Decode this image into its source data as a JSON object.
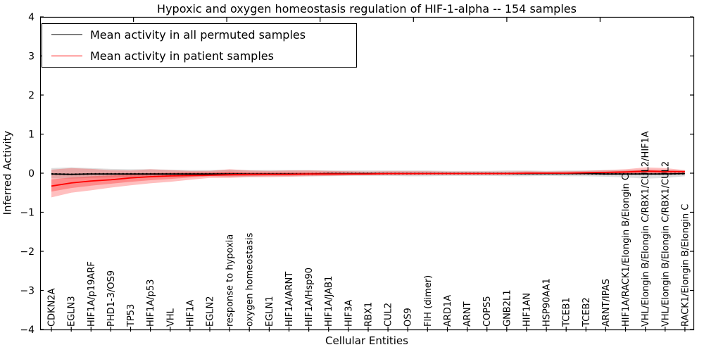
{
  "title": "Hypoxic and oxygen homeostasis regulation of HIF-1-alpha -- 154 samples",
  "colors": {
    "permuted_line": "#000000",
    "patient_line": "#ff0000",
    "permuted_band": "#000000",
    "patient_band": "#ff0000",
    "axis": "#000000",
    "background": "#ffffff"
  },
  "chart_data": {
    "type": "line",
    "title": "Hypoxic and oxygen homeostasis regulation of HIF-1-alpha -- 154 samples",
    "xlabel": "Cellular Entities",
    "ylabel": "Inferred Activity",
    "ylim": [
      -4,
      4
    ],
    "yticks": [
      -4,
      -3,
      -2,
      -1,
      0,
      1,
      2,
      3,
      4
    ],
    "grid": false,
    "legend_position": "upper left",
    "categories": [
      "CDKN2A",
      "EGLN3",
      "HIF1A/p19ARF",
      "PHD1-3/OS9",
      "TP53",
      "HIF1A/p53",
      "VHL",
      "HIF1A",
      "EGLN2",
      "response to hypoxia",
      "oxygen homeostasis",
      "EGLN1",
      "HIF1A/ARNT",
      "HIF1A/Hsp90",
      "HIF1A/JAB1",
      "HIF3A",
      "RBX1",
      "CUL2",
      "OS9",
      "FIH (dimer)",
      "ARD1A",
      "ARNT",
      "COPS5",
      "GNB2L1",
      "HIF1AN",
      "HSP90AA1",
      "TCEB1",
      "TCEB2",
      "ARNT/IPAS",
      "HIF1A/RACK1/Elongin B/Elongin C",
      "VHL/Elongin B/Elongin C/RBX1/CUL2/HIF1A",
      "VHL/Elongin B/Elongin C/RBX1/CUL2",
      "RACK1/Elongin B/Elongin C"
    ],
    "series": [
      {
        "name": "Mean activity in all permuted samples",
        "color": "#000000",
        "values": [
          -0.02,
          -0.03,
          -0.02,
          -0.02,
          -0.02,
          -0.02,
          -0.02,
          -0.02,
          -0.02,
          -0.02,
          -0.02,
          -0.02,
          -0.02,
          -0.02,
          -0.01,
          -0.01,
          -0.01,
          -0.01,
          -0.01,
          -0.01,
          -0.01,
          -0.01,
          -0.01,
          -0.01,
          -0.01,
          -0.01,
          -0.01,
          -0.01,
          -0.02,
          -0.02,
          -0.02,
          -0.02,
          -0.01
        ]
      },
      {
        "name": "Mean activity in patient samples",
        "color": "#ff0000",
        "values": [
          -0.33,
          -0.25,
          -0.2,
          -0.17,
          -0.12,
          -0.09,
          -0.07,
          -0.06,
          -0.05,
          -0.04,
          -0.03,
          -0.03,
          -0.03,
          -0.02,
          -0.02,
          -0.02,
          -0.02,
          -0.01,
          -0.01,
          -0.01,
          -0.01,
          -0.01,
          -0.01,
          -0.01,
          0,
          0,
          0,
          0.01,
          0.02,
          0.03,
          0.05,
          0.04,
          0.04
        ]
      }
    ],
    "bands": [
      {
        "name": "permuted-samples-band",
        "color": "#000000",
        "opacity": 0.13,
        "lower": [
          -0.13,
          -0.14,
          -0.12,
          -0.11,
          -0.1,
          -0.1,
          -0.1,
          -0.09,
          -0.08,
          -0.09,
          -0.09,
          -0.08,
          -0.08,
          -0.08,
          -0.08,
          -0.07,
          -0.07,
          -0.07,
          -0.08,
          -0.08,
          -0.07,
          -0.07,
          -0.07,
          -0.08,
          -0.08,
          -0.07,
          -0.08,
          -0.08,
          -0.09,
          -0.11,
          -0.14,
          -0.12,
          -0.08
        ],
        "upper": [
          0.13,
          0.15,
          0.13,
          0.11,
          0.1,
          0.1,
          0.09,
          0.08,
          0.08,
          0.09,
          0.08,
          0.08,
          0.08,
          0.08,
          0.07,
          0.07,
          0.07,
          0.07,
          0.07,
          0.07,
          0.06,
          0.06,
          0.06,
          0.07,
          0.07,
          0.06,
          0.07,
          0.07,
          0.08,
          0.08,
          0.09,
          0.08,
          0.07
        ]
      },
      {
        "name": "patient-samples-band-outer",
        "color": "#ff0000",
        "opacity": 0.25,
        "lower": [
          -0.62,
          -0.5,
          -0.44,
          -0.37,
          -0.31,
          -0.26,
          -0.22,
          -0.17,
          -0.12,
          -0.12,
          -0.1,
          -0.1,
          -0.09,
          -0.08,
          -0.07,
          -0.06,
          -0.05,
          -0.05,
          -0.05,
          -0.04,
          -0.04,
          -0.04,
          -0.04,
          -0.04,
          -0.04,
          -0.03,
          -0.03,
          -0.03,
          -0.02,
          -0.02,
          -0.02,
          -0.01,
          0
        ],
        "upper": [
          0.09,
          0.13,
          0.11,
          0.08,
          0.07,
          0.1,
          0.08,
          0.06,
          0.06,
          0.1,
          0.07,
          0.06,
          0.07,
          0.07,
          0.06,
          0.05,
          0.04,
          0.05,
          0.05,
          0.05,
          0.04,
          0.04,
          0.04,
          0.04,
          0.05,
          0.04,
          0.05,
          0.06,
          0.08,
          0.1,
          0.15,
          0.13,
          0.08
        ]
      },
      {
        "name": "patient-samples-band-inner",
        "color": "#ff0000",
        "opacity": 0.28,
        "lower": [
          -0.47,
          -0.38,
          -0.32,
          -0.27,
          -0.22,
          -0.18,
          -0.15,
          -0.11,
          -0.08,
          -0.08,
          -0.07,
          -0.06,
          -0.06,
          -0.05,
          -0.05,
          -0.04,
          -0.04,
          -0.03,
          -0.03,
          -0.03,
          -0.02,
          -0.02,
          -0.02,
          -0.02,
          -0.02,
          -0.02,
          -0.02,
          -0.01,
          0,
          0,
          0.01,
          0.01,
          0.02
        ],
        "upper": [
          -0.16,
          -0.11,
          -0.08,
          -0.06,
          -0.03,
          0,
          0.01,
          0.02,
          0.02,
          0.04,
          0.02,
          0.02,
          0.02,
          0.02,
          0.02,
          0.01,
          0.01,
          0.01,
          0.01,
          0.01,
          0.01,
          0.01,
          0.01,
          0.01,
          0.02,
          0.02,
          0.02,
          0.03,
          0.04,
          0.06,
          0.09,
          0.08,
          0.06
        ]
      }
    ]
  }
}
